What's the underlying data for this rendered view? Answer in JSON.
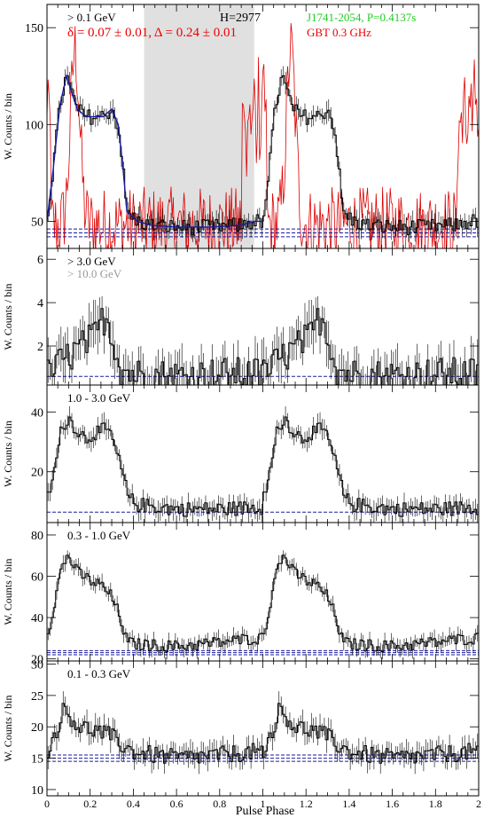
{
  "chart_data": {
    "type": "line",
    "shared_x": {
      "label": "Pulse Phase",
      "range": [
        0,
        2
      ],
      "ticks": [
        "0",
        "0.2",
        "0.4",
        "0.6",
        "0.8",
        "1",
        "1.2",
        "1.4",
        "1.6",
        "1.8",
        "2"
      ]
    },
    "panels": [
      {
        "label": "> 0.1 GeV",
        "ylabel": "W. Counts / bin",
        "ylim": [
          36,
          162
        ],
        "yticks": [
          50,
          100,
          150
        ],
        "background_level": [
          42,
          44,
          46
        ],
        "shaded_x": [
          0.45,
          0.96
        ],
        "annotations": [
          {
            "text": "H=2977",
            "color": "#000000"
          },
          {
            "text": "J1741-2054, P=0.4137s",
            "color": "#22cc22"
          },
          {
            "text": "δ = 0.07 ± 0.01, Δ = 0.24 ± 0.01",
            "color": "#ee0000"
          },
          {
            "text": "GBT 0.3 GHz",
            "color": "#ee0000"
          }
        ],
        "profile": [
          [
            0.0,
            50
          ],
          [
            0.03,
            78
          ],
          [
            0.06,
            110
          ],
          [
            0.09,
            125
          ],
          [
            0.11,
            118
          ],
          [
            0.14,
            108
          ],
          [
            0.18,
            104
          ],
          [
            0.22,
            104
          ],
          [
            0.26,
            104
          ],
          [
            0.3,
            108
          ],
          [
            0.33,
            100
          ],
          [
            0.35,
            80
          ],
          [
            0.37,
            55
          ],
          [
            0.42,
            50
          ],
          [
            0.48,
            48
          ],
          [
            0.6,
            47
          ],
          [
            0.75,
            47
          ],
          [
            0.9,
            48
          ],
          [
            0.96,
            50
          ]
        ],
        "noise_amp": 4
      },
      {
        "label": "> 3.0 GeV",
        "label2": "> 10.0 GeV",
        "ylabel": "W. Counts / bin",
        "ylim": [
          0.2,
          6.5
        ],
        "yticks": [
          2,
          4,
          6
        ],
        "background_level": [
          0.6
        ],
        "profile": [
          [
            0.0,
            0.6
          ],
          [
            0.06,
            1.2
          ],
          [
            0.14,
            1.8
          ],
          [
            0.22,
            2.4
          ],
          [
            0.27,
            3.4
          ],
          [
            0.3,
            2.6
          ],
          [
            0.34,
            1.0
          ],
          [
            0.4,
            0.7
          ],
          [
            0.6,
            0.6
          ],
          [
            0.8,
            0.7
          ],
          [
            0.96,
            0.7
          ]
        ],
        "noise_amp": 0.8
      },
      {
        "label": "1.0 - 3.0 GeV",
        "ylabel": "W. Counts / bin",
        "ylim": [
          3,
          49
        ],
        "yticks": [
          20,
          40
        ],
        "background_level": [
          6.5
        ],
        "profile": [
          [
            0.0,
            10
          ],
          [
            0.04,
            22
          ],
          [
            0.07,
            35
          ],
          [
            0.1,
            38
          ],
          [
            0.14,
            34
          ],
          [
            0.18,
            31
          ],
          [
            0.22,
            33
          ],
          [
            0.27,
            34
          ],
          [
            0.3,
            32
          ],
          [
            0.34,
            22
          ],
          [
            0.38,
            11
          ],
          [
            0.42,
            9
          ],
          [
            0.6,
            7.5
          ],
          [
            0.8,
            7.5
          ],
          [
            0.96,
            8
          ]
        ],
        "noise_amp": 2.5
      },
      {
        "label": "0.3 - 1.0 GeV",
        "ylabel": "W. Counts / bin",
        "ylim": [
          19,
          86
        ],
        "yticks": [
          20,
          40,
          60,
          80
        ],
        "background_level": [
          22,
          23,
          24
        ],
        "profile": [
          [
            0.0,
            30
          ],
          [
            0.04,
            50
          ],
          [
            0.07,
            65
          ],
          [
            0.1,
            70
          ],
          [
            0.14,
            62
          ],
          [
            0.2,
            58
          ],
          [
            0.26,
            55
          ],
          [
            0.3,
            50
          ],
          [
            0.34,
            40
          ],
          [
            0.37,
            28
          ],
          [
            0.42,
            27
          ],
          [
            0.6,
            26
          ],
          [
            0.8,
            28
          ],
          [
            0.96,
            30
          ]
        ],
        "noise_amp": 3
      },
      {
        "label": "0.1 - 0.3 GeV",
        "ylabel": "W. Counts / bin",
        "ylim": [
          9,
          30.5
        ],
        "yticks": [
          10,
          15,
          20,
          25,
          30
        ],
        "background_level": [
          14.5,
          15,
          15.5
        ],
        "profile": [
          [
            0.0,
            16
          ],
          [
            0.04,
            19
          ],
          [
            0.08,
            23
          ],
          [
            0.1,
            22
          ],
          [
            0.15,
            20
          ],
          [
            0.22,
            19.5
          ],
          [
            0.3,
            18.5
          ],
          [
            0.35,
            17
          ],
          [
            0.4,
            16
          ],
          [
            0.6,
            15
          ],
          [
            0.8,
            15.5
          ],
          [
            0.96,
            16
          ]
        ],
        "noise_amp": 1.4
      }
    ]
  }
}
